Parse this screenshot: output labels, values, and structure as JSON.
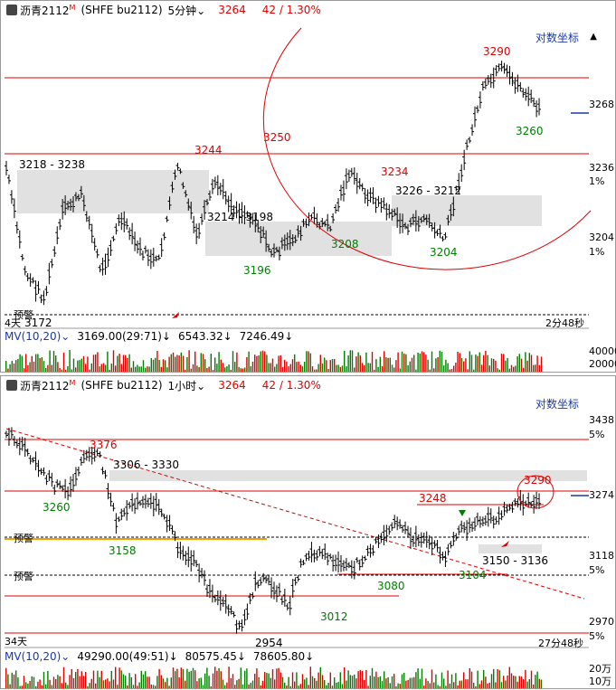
{
  "top": {
    "symbol": "沥青2112",
    "badge": "M",
    "code": "(SHFE bu2112)",
    "period": "5分钟",
    "price": "3264",
    "change": "42 / 1.30%",
    "log_axis": "对数坐标",
    "axis_labels": [
      "3268",
      "3236",
      "1%",
      "3204",
      "1%"
    ],
    "price_labels": [
      {
        "text": "3290",
        "color": "red"
      },
      {
        "text": "3260",
        "color": "green"
      },
      {
        "text": "3250",
        "color": "red"
      },
      {
        "text": "3244",
        "color": "red"
      },
      {
        "text": "3234",
        "color": "red"
      },
      {
        "text": "3218 - 3238",
        "color": "black"
      },
      {
        "text": "3226 - 3212",
        "color": "black"
      },
      {
        "text": "3214 - 3198",
        "color": "black"
      },
      {
        "text": "3208",
        "color": "green"
      },
      {
        "text": "3204",
        "color": "green"
      },
      {
        "text": "3196",
        "color": "green"
      },
      {
        "text": "3172",
        "color": "black"
      }
    ],
    "alert": "预警",
    "days": "4天",
    "countdown": "2分48秒",
    "mv": {
      "label": "MV(10,20)",
      "v1": "3169.00(29:71)↓",
      "v2": "6543.32↓",
      "v3": "7246.49↓"
    },
    "vol_axis": [
      "40000",
      "20000"
    ]
  },
  "bottom": {
    "symbol": "沥青2112",
    "badge": "M",
    "code": "(SHFE bu2112)",
    "period": "1小时",
    "price": "3264",
    "change": "42 / 1.30%",
    "log_axis": "对数坐标",
    "axis_labels": [
      "3438",
      "5%",
      "3274",
      "3118",
      "5%",
      "2970",
      "5%"
    ],
    "price_labels": [
      {
        "text": "3376",
        "color": "red"
      },
      {
        "text": "3306 - 3330",
        "color": "black"
      },
      {
        "text": "3260",
        "color": "green"
      },
      {
        "text": "3158",
        "color": "green"
      },
      {
        "text": "3248",
        "color": "red"
      },
      {
        "text": "3290",
        "color": "red"
      },
      {
        "text": "3150 - 3136",
        "color": "black"
      },
      {
        "text": "3104",
        "color": "green"
      },
      {
        "text": "3080",
        "color": "green"
      },
      {
        "text": "3012",
        "color": "green"
      },
      {
        "text": "2954",
        "color": "black"
      }
    ],
    "alert1": "预警",
    "alert2": "预警",
    "days": "34天",
    "countdown": "27分48秒",
    "mv": {
      "label": "MV(10,20)",
      "v1": "49290.00(49:51)↓",
      "v2": "80575.45↓",
      "v3": "78605.80↓"
    },
    "vol_axis": [
      "20万",
      "10万"
    ]
  },
  "colors": {
    "red": "#e00000",
    "green": "#008000",
    "blue": "#1a3aa8",
    "zone": "#d4d4d4",
    "orange": "#f0a000"
  }
}
